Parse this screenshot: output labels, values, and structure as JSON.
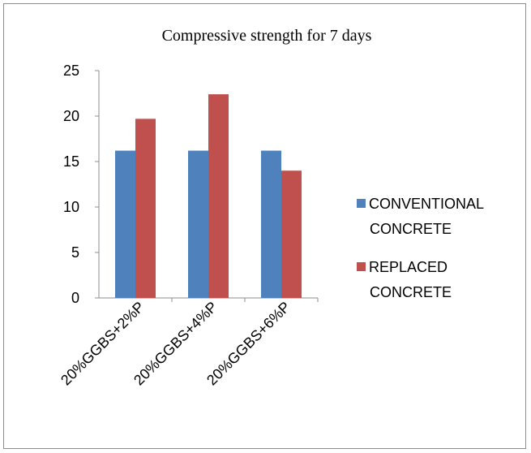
{
  "chart_data": {
    "type": "bar",
    "title": "Compressive strength for 7 days",
    "categories": [
      "20%GGBS+2%P",
      "20%GGBS+4%P",
      "20%GGBS+6%P"
    ],
    "series": [
      {
        "name": "CONVENTIONAL CONCRETE",
        "legend_lines": [
          "CONVENTIONAL",
          "CONCRETE"
        ],
        "color": "#4f81bd",
        "values": [
          16.2,
          16.2,
          16.2
        ]
      },
      {
        "name": "REPLACED CONCRETE",
        "legend_lines": [
          "REPLACED",
          "CONCRETE"
        ],
        "color": "#c0504d",
        "values": [
          19.7,
          22.4,
          14.0
        ]
      }
    ],
    "y_ticks": [
      "0",
      "5",
      "10",
      "15",
      "20",
      "25"
    ],
    "ylim": [
      0,
      25
    ],
    "grid": false,
    "legend_position": "right"
  }
}
